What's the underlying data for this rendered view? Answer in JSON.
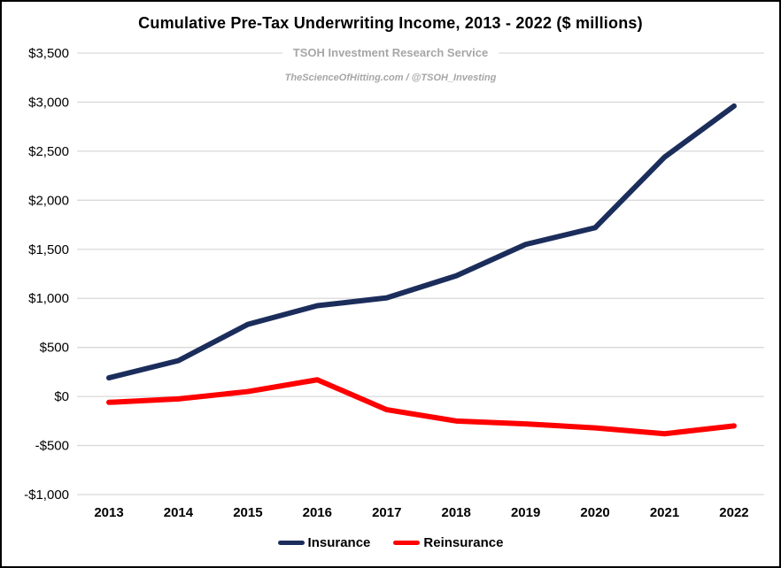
{
  "chart_data": {
    "type": "line",
    "title": "Cumulative Pre-Tax Underwriting Income, 2013 - 2022 ($ millions)",
    "subtitle": "TSOH Investment Research Service",
    "tagline": "TheScienceOfHitting.com / @TSOH_Investing",
    "x": [
      "2013",
      "2014",
      "2015",
      "2016",
      "2017",
      "2018",
      "2019",
      "2020",
      "2021",
      "2022"
    ],
    "series": [
      {
        "name": "Insurance",
        "color": "#1B2D5B",
        "values": [
          190,
          365,
          735,
          925,
          1005,
          1230,
          1550,
          1720,
          2440,
          2960
        ]
      },
      {
        "name": "Reinsurance",
        "color": "#FF0000",
        "values": [
          -60,
          -25,
          50,
          170,
          -135,
          -250,
          -280,
          -320,
          -380,
          -300
        ]
      }
    ],
    "y_axis": {
      "min": -1000,
      "max": 3500,
      "step": 500,
      "ticks": [
        {
          "value": 3500,
          "label": "$3,500"
        },
        {
          "value": 3000,
          "label": "$3,000"
        },
        {
          "value": 2500,
          "label": "$2,500"
        },
        {
          "value": 2000,
          "label": "$2,000"
        },
        {
          "value": 1500,
          "label": "$1,500"
        },
        {
          "value": 1000,
          "label": "$1,000"
        },
        {
          "value": 500,
          "label": "$500"
        },
        {
          "value": 0,
          "label": "$0"
        },
        {
          "value": -500,
          "label": "-$500"
        },
        {
          "value": -1000,
          "label": "-$1,000"
        }
      ]
    },
    "legend_position": "bottom",
    "grid": "horizontal",
    "colors": {
      "gridline": "#D9D9D9",
      "subtitle_gray": "#A6A6A6",
      "text": "#000000",
      "background": "#FFFFFF",
      "border": "#000000"
    }
  }
}
